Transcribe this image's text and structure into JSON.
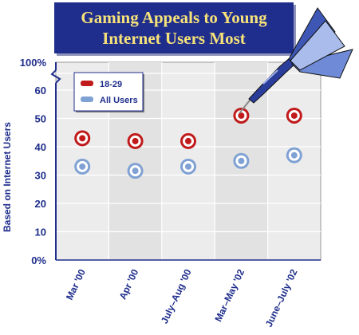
{
  "title": {
    "line1": "Gaming Appeals to Young",
    "line2": "Internet Users Most"
  },
  "chart_data": {
    "type": "scatter",
    "title": "Gaming Appeals to Young Internet Users Most",
    "ylabel": "Based on Internet Users",
    "xlabel": "",
    "categories": [
      "Mar '00",
      "Apr '00",
      "July–Aug '00",
      "Mar–May '02",
      "June–July '02"
    ],
    "y_ticks": [
      "0%",
      "10",
      "20",
      "30",
      "40",
      "50",
      "60",
      "100%"
    ],
    "ylim": [
      0,
      60
    ],
    "axis_break": true,
    "grid": true,
    "legend_position": "top-left",
    "series": [
      {
        "name": "18-29",
        "color": "#c01a1a",
        "values": [
          43,
          42,
          42,
          51,
          51
        ]
      },
      {
        "name": "All Users",
        "color": "#7fa1d3",
        "values": [
          33,
          31.5,
          33,
          35,
          37
        ]
      }
    ]
  }
}
